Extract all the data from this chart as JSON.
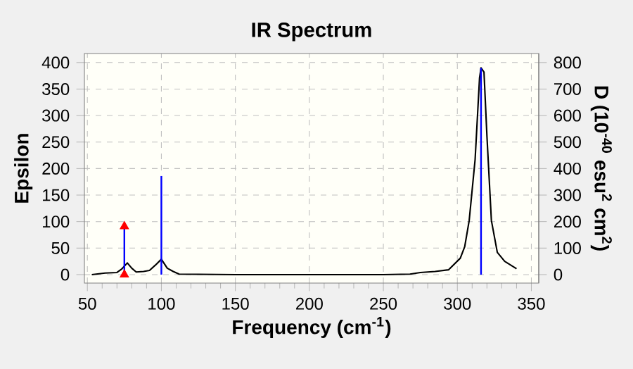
{
  "chart_data": {
    "type": "line",
    "title": "IR Spectrum",
    "xlabel": "Frequency (cm$^{-1}$)",
    "ylabel": "Epsilon",
    "y2label": "D (10$^{-40}$ esu$^{2}$ cm$^{2}$)",
    "xlim": [
      48,
      355
    ],
    "xticks": [
      50,
      100,
      150,
      200,
      250,
      300,
      350
    ],
    "ylim": [
      -16,
      417
    ],
    "yticks": [
      0,
      50,
      100,
      150,
      200,
      250,
      300,
      350,
      400
    ],
    "y2lim": [
      -32,
      834
    ],
    "y2ticks": [
      0,
      100,
      200,
      300,
      400,
      500,
      600,
      700,
      800
    ],
    "grid": true,
    "series": [
      {
        "color": "#000000",
        "x": [
          53,
          56,
          62,
          70,
          73,
          77,
          80,
          83,
          88,
          92,
          96,
          100,
          104,
          108,
          112,
          150,
          200,
          250,
          268,
          275,
          285,
          294,
          302,
          305,
          308,
          312,
          315,
          316,
          318,
          320,
          323,
          327,
          332,
          340
        ],
        "values": [
          0,
          1,
          3,
          4,
          10,
          22,
          12,
          5,
          6,
          8,
          18,
          29,
          12,
          6,
          1,
          0,
          0,
          0,
          1,
          4,
          6,
          9,
          31,
          53,
          102,
          217,
          371,
          390,
          382,
          261,
          102,
          42,
          25,
          11
        ]
      },
      {
        "type": "bar",
        "axis": "y2",
        "color": "#0000ff",
        "x": [
          75,
          100,
          316
        ],
        "values": [
          182,
          372,
          779
        ]
      },
      {
        "type": "scatter",
        "axis": "y2",
        "marker": "triangle",
        "color": "#ff0000",
        "x": [
          75,
          75
        ],
        "values": [
          182,
          0
        ]
      }
    ]
  }
}
